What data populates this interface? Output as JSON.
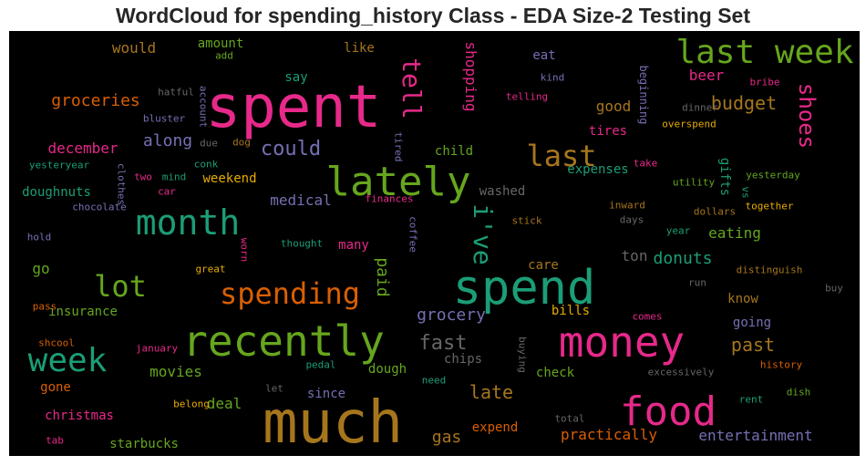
{
  "chart_data": {
    "type": "wordcloud",
    "title": "WordCloud for spending_history Class - EDA Size-2 Testing Set",
    "words": [
      {
        "text": "spent",
        "weight": 100,
        "color": "#e7298a"
      },
      {
        "text": "much",
        "weight": 92,
        "color": "#a6761d"
      },
      {
        "text": "spend",
        "weight": 78,
        "color": "#1b9e77"
      },
      {
        "text": "recently",
        "weight": 70,
        "color": "#66a61e"
      },
      {
        "text": "money",
        "weight": 68,
        "color": "#e7298a"
      },
      {
        "text": "lately",
        "weight": 64,
        "color": "#66a61e"
      },
      {
        "text": "food",
        "weight": 62,
        "color": "#e7298a"
      },
      {
        "text": "month",
        "weight": 58,
        "color": "#1b9e77"
      },
      {
        "text": "last week",
        "weight": 56,
        "color": "#66a61e"
      },
      {
        "text": "week",
        "weight": 54,
        "color": "#1b9e77"
      },
      {
        "text": "spending",
        "weight": 50,
        "color": "#d95f02"
      },
      {
        "text": "last",
        "weight": 50,
        "color": "#a6761d"
      },
      {
        "text": "lot",
        "weight": 48,
        "color": "#66a61e"
      },
      {
        "text": "i've",
        "weight": 44,
        "color": "#1b9e77"
      },
      {
        "text": "tell",
        "weight": 40,
        "color": "#e7298a"
      },
      {
        "text": "shoes",
        "weight": 38,
        "color": "#e7298a"
      },
      {
        "text": "could",
        "weight": 32,
        "color": "#7570b3"
      },
      {
        "text": "fast",
        "weight": 30,
        "color": "#666666"
      },
      {
        "text": "past",
        "weight": 28,
        "color": "#a6761d"
      },
      {
        "text": "budget",
        "weight": 26,
        "color": "#a6761d"
      },
      {
        "text": "late",
        "weight": 25,
        "color": "#a6761d"
      },
      {
        "text": "grocery",
        "weight": 24,
        "color": "#7570b3"
      },
      {
        "text": "along",
        "weight": 24,
        "color": "#7570b3"
      },
      {
        "text": "groceries",
        "weight": 23,
        "color": "#d95f02"
      },
      {
        "text": "donuts",
        "weight": 23,
        "color": "#1b9e77"
      },
      {
        "text": "shopping",
        "weight": 22,
        "color": "#e7298a"
      },
      {
        "text": "entertainment",
        "weight": 22,
        "color": "#7570b3"
      },
      {
        "text": "practically",
        "weight": 22,
        "color": "#d95f02"
      },
      {
        "text": "gas",
        "weight": 22,
        "color": "#a6761d"
      },
      {
        "text": "paid",
        "weight": 22,
        "color": "#66a61e"
      },
      {
        "text": "beer",
        "weight": 22,
        "color": "#e7298a"
      },
      {
        "text": "ton",
        "weight": 21,
        "color": "#666666"
      },
      {
        "text": "go",
        "weight": 21,
        "color": "#66a61e"
      },
      {
        "text": "medical",
        "weight": 20,
        "color": "#7570b3"
      },
      {
        "text": "would",
        "weight": 20,
        "color": "#a6761d"
      },
      {
        "text": "movies",
        "weight": 20,
        "color": "#66a61e"
      },
      {
        "text": "deal",
        "weight": 20,
        "color": "#66a61e"
      },
      {
        "text": "eating",
        "weight": 20,
        "color": "#66a61e"
      },
      {
        "text": "december",
        "weight": 20,
        "color": "#e7298a"
      },
      {
        "text": "good",
        "weight": 20,
        "color": "#a6761d"
      },
      {
        "text": "care",
        "weight": 19,
        "color": "#a6761d"
      },
      {
        "text": "dough",
        "weight": 19,
        "color": "#66a61e"
      },
      {
        "text": "doughnuts",
        "weight": 19,
        "color": "#1b9e77"
      },
      {
        "text": "starbucks",
        "weight": 19,
        "color": "#66a61e"
      },
      {
        "text": "christmas",
        "weight": 19,
        "color": "#e7298a"
      },
      {
        "text": "expenses",
        "weight": 19,
        "color": "#1b9e77"
      },
      {
        "text": "check",
        "weight": 19,
        "color": "#66a61e"
      },
      {
        "text": "gone",
        "weight": 19,
        "color": "#d95f02"
      },
      {
        "text": "washed",
        "weight": 19,
        "color": "#666666"
      },
      {
        "text": "insurance",
        "weight": 18,
        "color": "#66a61e"
      },
      {
        "text": "tires",
        "weight": 18,
        "color": "#e7298a"
      },
      {
        "text": "child",
        "weight": 18,
        "color": "#66a61e"
      },
      {
        "text": "weekend",
        "weight": 18,
        "color": "#e6ab02"
      },
      {
        "text": "many",
        "weight": 18,
        "color": "#e7298a"
      },
      {
        "text": "since",
        "weight": 18,
        "color": "#7570b3"
      },
      {
        "text": "chips",
        "weight": 18,
        "color": "#666666"
      },
      {
        "text": "expend",
        "weight": 18,
        "color": "#d95f02"
      },
      {
        "text": "know",
        "weight": 18,
        "color": "#a6761d"
      },
      {
        "text": "going",
        "weight": 18,
        "color": "#7570b3"
      },
      {
        "text": "eat",
        "weight": 18,
        "color": "#7570b3"
      },
      {
        "text": "like",
        "weight": 17,
        "color": "#a6761d"
      },
      {
        "text": "say",
        "weight": 17,
        "color": "#1b9e77"
      },
      {
        "text": "amount",
        "weight": 16,
        "color": "#66a61e"
      },
      {
        "text": "bills",
        "weight": 16,
        "color": "#e6ab02"
      },
      {
        "text": "gifts",
        "weight": 16,
        "color": "#1b9e77"
      },
      {
        "text": "beginning",
        "weight": 15,
        "color": "#7570b3"
      },
      {
        "text": "hatful",
        "weight": 12,
        "color": "#666666"
      },
      {
        "text": "bluster",
        "weight": 12,
        "color": "#7570b3"
      },
      {
        "text": "account",
        "weight": 11,
        "color": "#7570b3"
      },
      {
        "text": "add",
        "weight": 11,
        "color": "#66a61e"
      },
      {
        "text": "due",
        "weight": 11,
        "color": "#666666"
      },
      {
        "text": "dog",
        "weight": 11,
        "color": "#a6761d"
      },
      {
        "text": "tired",
        "weight": 11,
        "color": "#7570b3"
      },
      {
        "text": "kind",
        "weight": 11,
        "color": "#7570b3"
      },
      {
        "text": "telling",
        "weight": 11,
        "color": "#e7298a"
      },
      {
        "text": "dinner",
        "weight": 11,
        "color": "#666666"
      },
      {
        "text": "bribe",
        "weight": 11,
        "color": "#e7298a"
      },
      {
        "text": "overspend",
        "weight": 11,
        "color": "#e6ab02"
      },
      {
        "text": "yesteryear",
        "weight": 11,
        "color": "#1b9e77"
      },
      {
        "text": "clothes",
        "weight": 11,
        "color": "#7570b3"
      },
      {
        "text": "two",
        "weight": 11,
        "color": "#e7298a"
      },
      {
        "text": "mind",
        "weight": 11,
        "color": "#1b9e77"
      },
      {
        "text": "conk",
        "weight": 11,
        "color": "#1b9e77"
      },
      {
        "text": "take",
        "weight": 11,
        "color": "#e7298a"
      },
      {
        "text": "utility",
        "weight": 11,
        "color": "#66a61e"
      },
      {
        "text": "yesterday",
        "weight": 11,
        "color": "#66a61e"
      },
      {
        "text": "vs",
        "weight": 11,
        "color": "#1b9e77"
      },
      {
        "text": "car",
        "weight": 11,
        "color": "#e7298a"
      },
      {
        "text": "finances",
        "weight": 11,
        "color": "#e7298a"
      },
      {
        "text": "chocolate",
        "weight": 11,
        "color": "#7570b3"
      },
      {
        "text": "inward",
        "weight": 11,
        "color": "#a6761d"
      },
      {
        "text": "dollars",
        "weight": 11,
        "color": "#a6761d"
      },
      {
        "text": "together",
        "weight": 11,
        "color": "#e6ab02"
      },
      {
        "text": "days",
        "weight": 11,
        "color": "#666666"
      },
      {
        "text": "coffee",
        "weight": 11,
        "color": "#7570b3"
      },
      {
        "text": "stick",
        "weight": 11,
        "color": "#a6761d"
      },
      {
        "text": "hold",
        "weight": 11,
        "color": "#7570b3"
      },
      {
        "text": "thought",
        "weight": 11,
        "color": "#1b9e77"
      },
      {
        "text": "year",
        "weight": 11,
        "color": "#1b9e77"
      },
      {
        "text": "worn",
        "weight": 11,
        "color": "#e7298a"
      },
      {
        "text": "great",
        "weight": 11,
        "color": "#e6ab02"
      },
      {
        "text": "distinguish",
        "weight": 11,
        "color": "#a6761d"
      },
      {
        "text": "run",
        "weight": 11,
        "color": "#666666"
      },
      {
        "text": "buy",
        "weight": 11,
        "color": "#666666"
      },
      {
        "text": "pass",
        "weight": 11,
        "color": "#d95f02"
      },
      {
        "text": "comes",
        "weight": 11,
        "color": "#e7298a"
      },
      {
        "text": "shcool",
        "weight": 11,
        "color": "#d95f02"
      },
      {
        "text": "january",
        "weight": 11,
        "color": "#e7298a"
      },
      {
        "text": "pedal",
        "weight": 11,
        "color": "#1b9e77"
      },
      {
        "text": "buying",
        "weight": 11,
        "color": "#666666"
      },
      {
        "text": "excessively",
        "weight": 11,
        "color": "#666666"
      },
      {
        "text": "history",
        "weight": 11,
        "color": "#d95f02"
      },
      {
        "text": "need",
        "weight": 11,
        "color": "#1b9e77"
      },
      {
        "text": "let",
        "weight": 11,
        "color": "#666666"
      },
      {
        "text": "rent",
        "weight": 11,
        "color": "#1b9e77"
      },
      {
        "text": "dish",
        "weight": 11,
        "color": "#66a61e"
      },
      {
        "text": "belong",
        "weight": 11,
        "color": "#e6ab02"
      },
      {
        "text": "total",
        "weight": 11,
        "color": "#666666"
      },
      {
        "text": "tab",
        "weight": 11,
        "color": "#e7298a"
      }
    ]
  }
}
